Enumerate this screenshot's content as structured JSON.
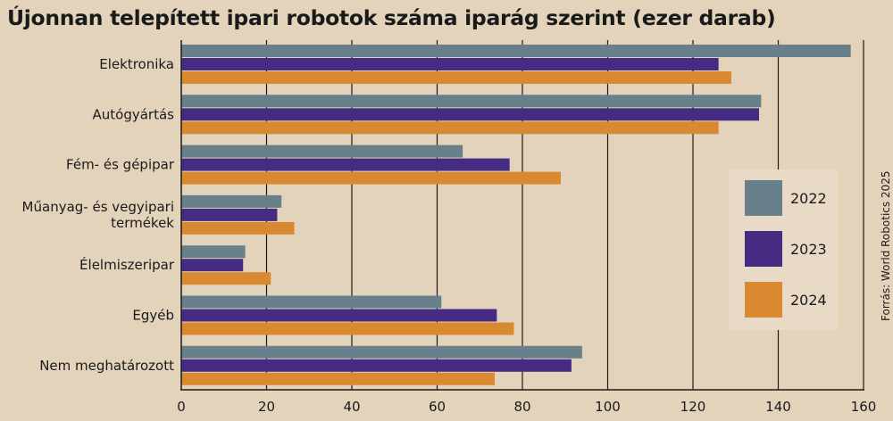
{
  "title": "Újonnan telepített ipari robotok száma iparág szerint (ezer darab)",
  "source": "Forrás: World Robotics 2025",
  "chart_data": {
    "type": "bar",
    "orientation": "horizontal",
    "title": "Újonnan telepített ipari robotok száma iparág szerint (ezer darab)",
    "categories": [
      "Elektronika",
      "Autógyártás",
      "Fém- és gépipar",
      "Műanyag- és vegyipari termékek",
      "Élelmiszeripar",
      "Egyéb",
      "Nem meghatározott"
    ],
    "series": [
      {
        "name": "2022",
        "color": "#67808a",
        "values": [
          157,
          136,
          66,
          23.5,
          15,
          61,
          94
        ]
      },
      {
        "name": "2023",
        "color": "#462b82",
        "values": [
          126,
          135.5,
          77,
          22.5,
          14.5,
          74,
          91.5
        ]
      },
      {
        "name": "2024",
        "color": "#d98a30",
        "values": [
          129,
          126,
          89,
          26.5,
          21,
          78,
          73.5
        ]
      }
    ],
    "xlim": [
      0,
      160
    ],
    "xticks": [
      0,
      20,
      40,
      60,
      80,
      100,
      120,
      140,
      160
    ],
    "grid": true,
    "legend": "right"
  }
}
